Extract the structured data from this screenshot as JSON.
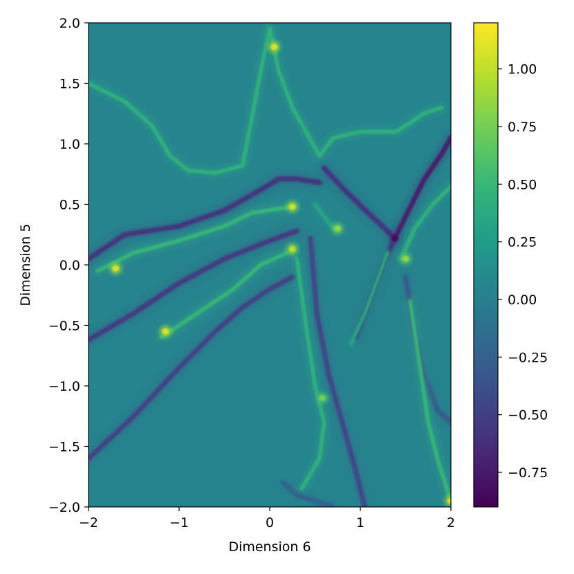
{
  "chart_data": {
    "type": "heatmap",
    "title": "",
    "xlabel": "Dimension 6",
    "ylabel": "Dimension 5",
    "xlim": [
      -2,
      2
    ],
    "ylim": [
      -2,
      2
    ],
    "x_ticks": [
      -2,
      -1,
      0,
      1,
      2
    ],
    "y_ticks": [
      -2.0,
      -1.5,
      -1.0,
      -0.5,
      0.0,
      0.5,
      1.0,
      1.5,
      2.0
    ],
    "x_tick_labels": [
      "−2",
      "−1",
      "0",
      "1",
      "2"
    ],
    "y_tick_labels": [
      "−2.0",
      "−1.5",
      "−1.0",
      "−0.5",
      "0.0",
      "0.5",
      "1.0",
      "1.5",
      "2.0"
    ],
    "colormap": "viridis",
    "background_value": 0.05,
    "colorbar": {
      "range": [
        -0.9,
        1.2
      ],
      "ticks": [
        -0.75,
        -0.5,
        -0.25,
        0.0,
        0.25,
        0.5,
        0.75,
        1.0
      ],
      "tick_labels": [
        "−0.75",
        "−0.50",
        "−0.25",
        "0.00",
        "0.25",
        "0.50",
        "0.75",
        "1.00"
      ]
    },
    "ridges": [
      {
        "kind": "low",
        "value": -0.6,
        "points": [
          [
            -2.0,
            0.05
          ],
          [
            -1.6,
            0.25
          ],
          [
            -1.0,
            0.32
          ],
          [
            -0.5,
            0.45
          ],
          [
            -0.1,
            0.62
          ],
          [
            0.1,
            0.71
          ],
          [
            0.3,
            0.71
          ],
          [
            0.55,
            0.68
          ]
        ]
      },
      {
        "kind": "low",
        "value": -0.55,
        "points": [
          [
            -2.0,
            -0.62
          ],
          [
            -1.5,
            -0.4
          ],
          [
            -1.0,
            -0.15
          ],
          [
            -0.5,
            0.05
          ],
          [
            0.0,
            0.2
          ],
          [
            0.3,
            0.28
          ]
        ]
      },
      {
        "kind": "low",
        "value": -0.5,
        "points": [
          [
            -2.0,
            -1.6
          ],
          [
            -1.5,
            -1.25
          ],
          [
            -1.0,
            -0.85
          ],
          [
            -0.6,
            -0.55
          ],
          [
            -0.3,
            -0.35
          ],
          [
            0.0,
            -0.2
          ],
          [
            0.25,
            -0.1
          ]
        ]
      },
      {
        "kind": "low",
        "value": -0.45,
        "points": [
          [
            0.45,
            0.22
          ],
          [
            0.52,
            -0.4
          ],
          [
            0.65,
            -0.9
          ],
          [
            0.8,
            -1.3
          ],
          [
            0.95,
            -1.7
          ],
          [
            1.05,
            -2.0
          ]
        ]
      },
      {
        "kind": "low",
        "value": -0.6,
        "points": [
          [
            0.6,
            0.8
          ],
          [
            0.85,
            0.6
          ],
          [
            1.1,
            0.42
          ],
          [
            1.3,
            0.28
          ],
          [
            1.38,
            0.22
          ]
        ]
      },
      {
        "kind": "low",
        "value": -0.75,
        "points": [
          [
            1.38,
            0.22
          ],
          [
            1.5,
            0.4
          ],
          [
            1.7,
            0.7
          ],
          [
            1.9,
            0.92
          ],
          [
            2.0,
            1.05
          ]
        ]
      },
      {
        "kind": "low",
        "value": -0.6,
        "points": [
          [
            1.38,
            0.22
          ],
          [
            1.25,
            0.0
          ],
          [
            1.1,
            -0.3
          ],
          [
            0.95,
            -0.6
          ]
        ]
      },
      {
        "kind": "low",
        "value": -0.3,
        "points": [
          [
            1.5,
            -0.1
          ],
          [
            1.58,
            -0.5
          ],
          [
            1.7,
            -0.9
          ],
          [
            1.85,
            -1.2
          ],
          [
            2.0,
            -1.3
          ]
        ]
      },
      {
        "kind": "low",
        "value": -0.25,
        "points": [
          [
            0.15,
            -1.8
          ],
          [
            0.3,
            -1.9
          ],
          [
            0.5,
            -1.95
          ],
          [
            0.7,
            -2.0
          ]
        ]
      },
      {
        "kind": "high",
        "value": 0.45,
        "points": [
          [
            -2.0,
            1.5
          ],
          [
            -1.6,
            1.35
          ],
          [
            -1.3,
            1.15
          ],
          [
            -1.1,
            0.9
          ],
          [
            -0.9,
            0.78
          ],
          [
            -0.6,
            0.76
          ],
          [
            -0.3,
            0.82
          ],
          [
            -0.2,
            1.2
          ],
          [
            -0.1,
            1.6
          ],
          [
            0.0,
            1.95
          ]
        ]
      },
      {
        "kind": "high",
        "value": 0.45,
        "points": [
          [
            0.0,
            1.95
          ],
          [
            0.1,
            1.6
          ],
          [
            0.25,
            1.3
          ],
          [
            0.4,
            1.1
          ],
          [
            0.55,
            0.9
          ],
          [
            0.7,
            1.05
          ],
          [
            1.0,
            1.1
          ],
          [
            1.4,
            1.1
          ],
          [
            1.7,
            1.25
          ],
          [
            1.9,
            1.3
          ]
        ]
      },
      {
        "kind": "high",
        "value": 0.5,
        "points": [
          [
            -1.9,
            -0.05
          ],
          [
            -1.5,
            0.1
          ],
          [
            -1.0,
            0.2
          ],
          [
            -0.5,
            0.32
          ],
          [
            -0.2,
            0.43
          ],
          [
            0.25,
            0.48
          ]
        ]
      },
      {
        "kind": "high",
        "value": 0.5,
        "points": [
          [
            -1.2,
            -0.6
          ],
          [
            -0.8,
            -0.4
          ],
          [
            -0.4,
            -0.2
          ],
          [
            -0.1,
            0.0
          ],
          [
            0.25,
            0.12
          ]
        ]
      },
      {
        "kind": "high",
        "value": 0.45,
        "points": [
          [
            0.3,
            0.05
          ],
          [
            0.4,
            -0.5
          ],
          [
            0.5,
            -1.0
          ],
          [
            0.6,
            -1.3
          ],
          [
            0.55,
            -1.6
          ],
          [
            0.35,
            -1.85
          ]
        ]
      },
      {
        "kind": "high",
        "value": 0.45,
        "points": [
          [
            1.45,
            0.05
          ],
          [
            1.6,
            0.3
          ],
          [
            1.8,
            0.5
          ],
          [
            2.0,
            0.65
          ]
        ]
      },
      {
        "kind": "high",
        "value": 0.5,
        "points": [
          [
            1.55,
            -0.3
          ],
          [
            1.65,
            -0.8
          ],
          [
            1.75,
            -1.3
          ],
          [
            1.85,
            -1.6
          ],
          [
            2.0,
            -1.95
          ]
        ]
      },
      {
        "kind": "high",
        "value": 0.35,
        "points": [
          [
            0.5,
            0.5
          ],
          [
            0.65,
            0.35
          ],
          [
            0.75,
            0.28
          ]
        ]
      },
      {
        "kind": "high",
        "value": 0.35,
        "points": [
          [
            0.9,
            -0.65
          ],
          [
            1.05,
            -0.4
          ],
          [
            1.2,
            -0.1
          ],
          [
            1.3,
            0.1
          ]
        ]
      }
    ],
    "peaks": [
      {
        "x": 0.05,
        "y": 1.8,
        "value": 1.1
      },
      {
        "x": 0.25,
        "y": 0.48,
        "value": 1.05
      },
      {
        "x": 0.25,
        "y": 0.13,
        "value": 1.0
      },
      {
        "x": -1.7,
        "y": -0.03,
        "value": 1.1
      },
      {
        "x": -1.15,
        "y": -0.55,
        "value": 1.1
      },
      {
        "x": 0.75,
        "y": 0.3,
        "value": 0.85
      },
      {
        "x": 2.0,
        "y": -1.95,
        "value": 1.1
      },
      {
        "x": 1.5,
        "y": 0.05,
        "value": 0.85
      },
      {
        "x": 0.58,
        "y": -1.1,
        "value": 0.75
      }
    ],
    "saddle": {
      "x": 1.38,
      "y": 0.22,
      "value": -0.85
    }
  }
}
